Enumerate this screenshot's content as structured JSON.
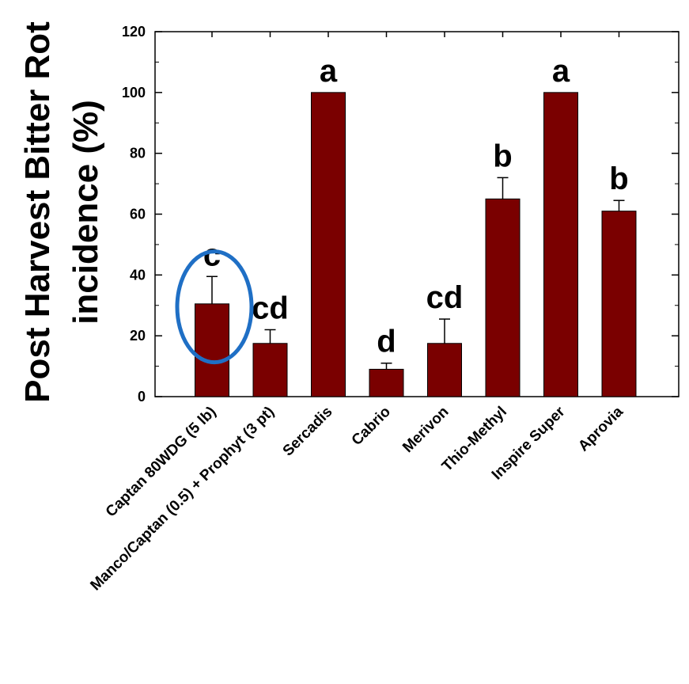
{
  "chart_data": {
    "type": "bar",
    "ylabel_lines": [
      "Post Harvest Bitter Rot",
      "incidence (%)"
    ],
    "ylim": [
      0,
      120
    ],
    "yticks": [
      0,
      20,
      40,
      60,
      80,
      100,
      120
    ],
    "grid": false,
    "categories": [
      "Captan 80WDG (5 lb)",
      "Manco/Captan (0.5) + Prophyt (3 pt)",
      "Sercadis",
      "Cabrio",
      "Merivon",
      "Thio-Methyl",
      "Inspire Super",
      "Aprovia"
    ],
    "values": [
      30.5,
      17.5,
      100,
      9,
      17.5,
      65,
      100,
      61
    ],
    "error_upper": [
      39.5,
      22,
      100,
      11,
      25.5,
      72,
      100,
      64.5
    ],
    "significance": [
      "c",
      "cd",
      "a",
      "d",
      "cd",
      "b",
      "a",
      "b"
    ],
    "bar_color": "#7a0000",
    "highlight": {
      "category": "Captan 80WDG (5 lb)",
      "shape": "ellipse",
      "color": "#1f6fc5"
    }
  }
}
